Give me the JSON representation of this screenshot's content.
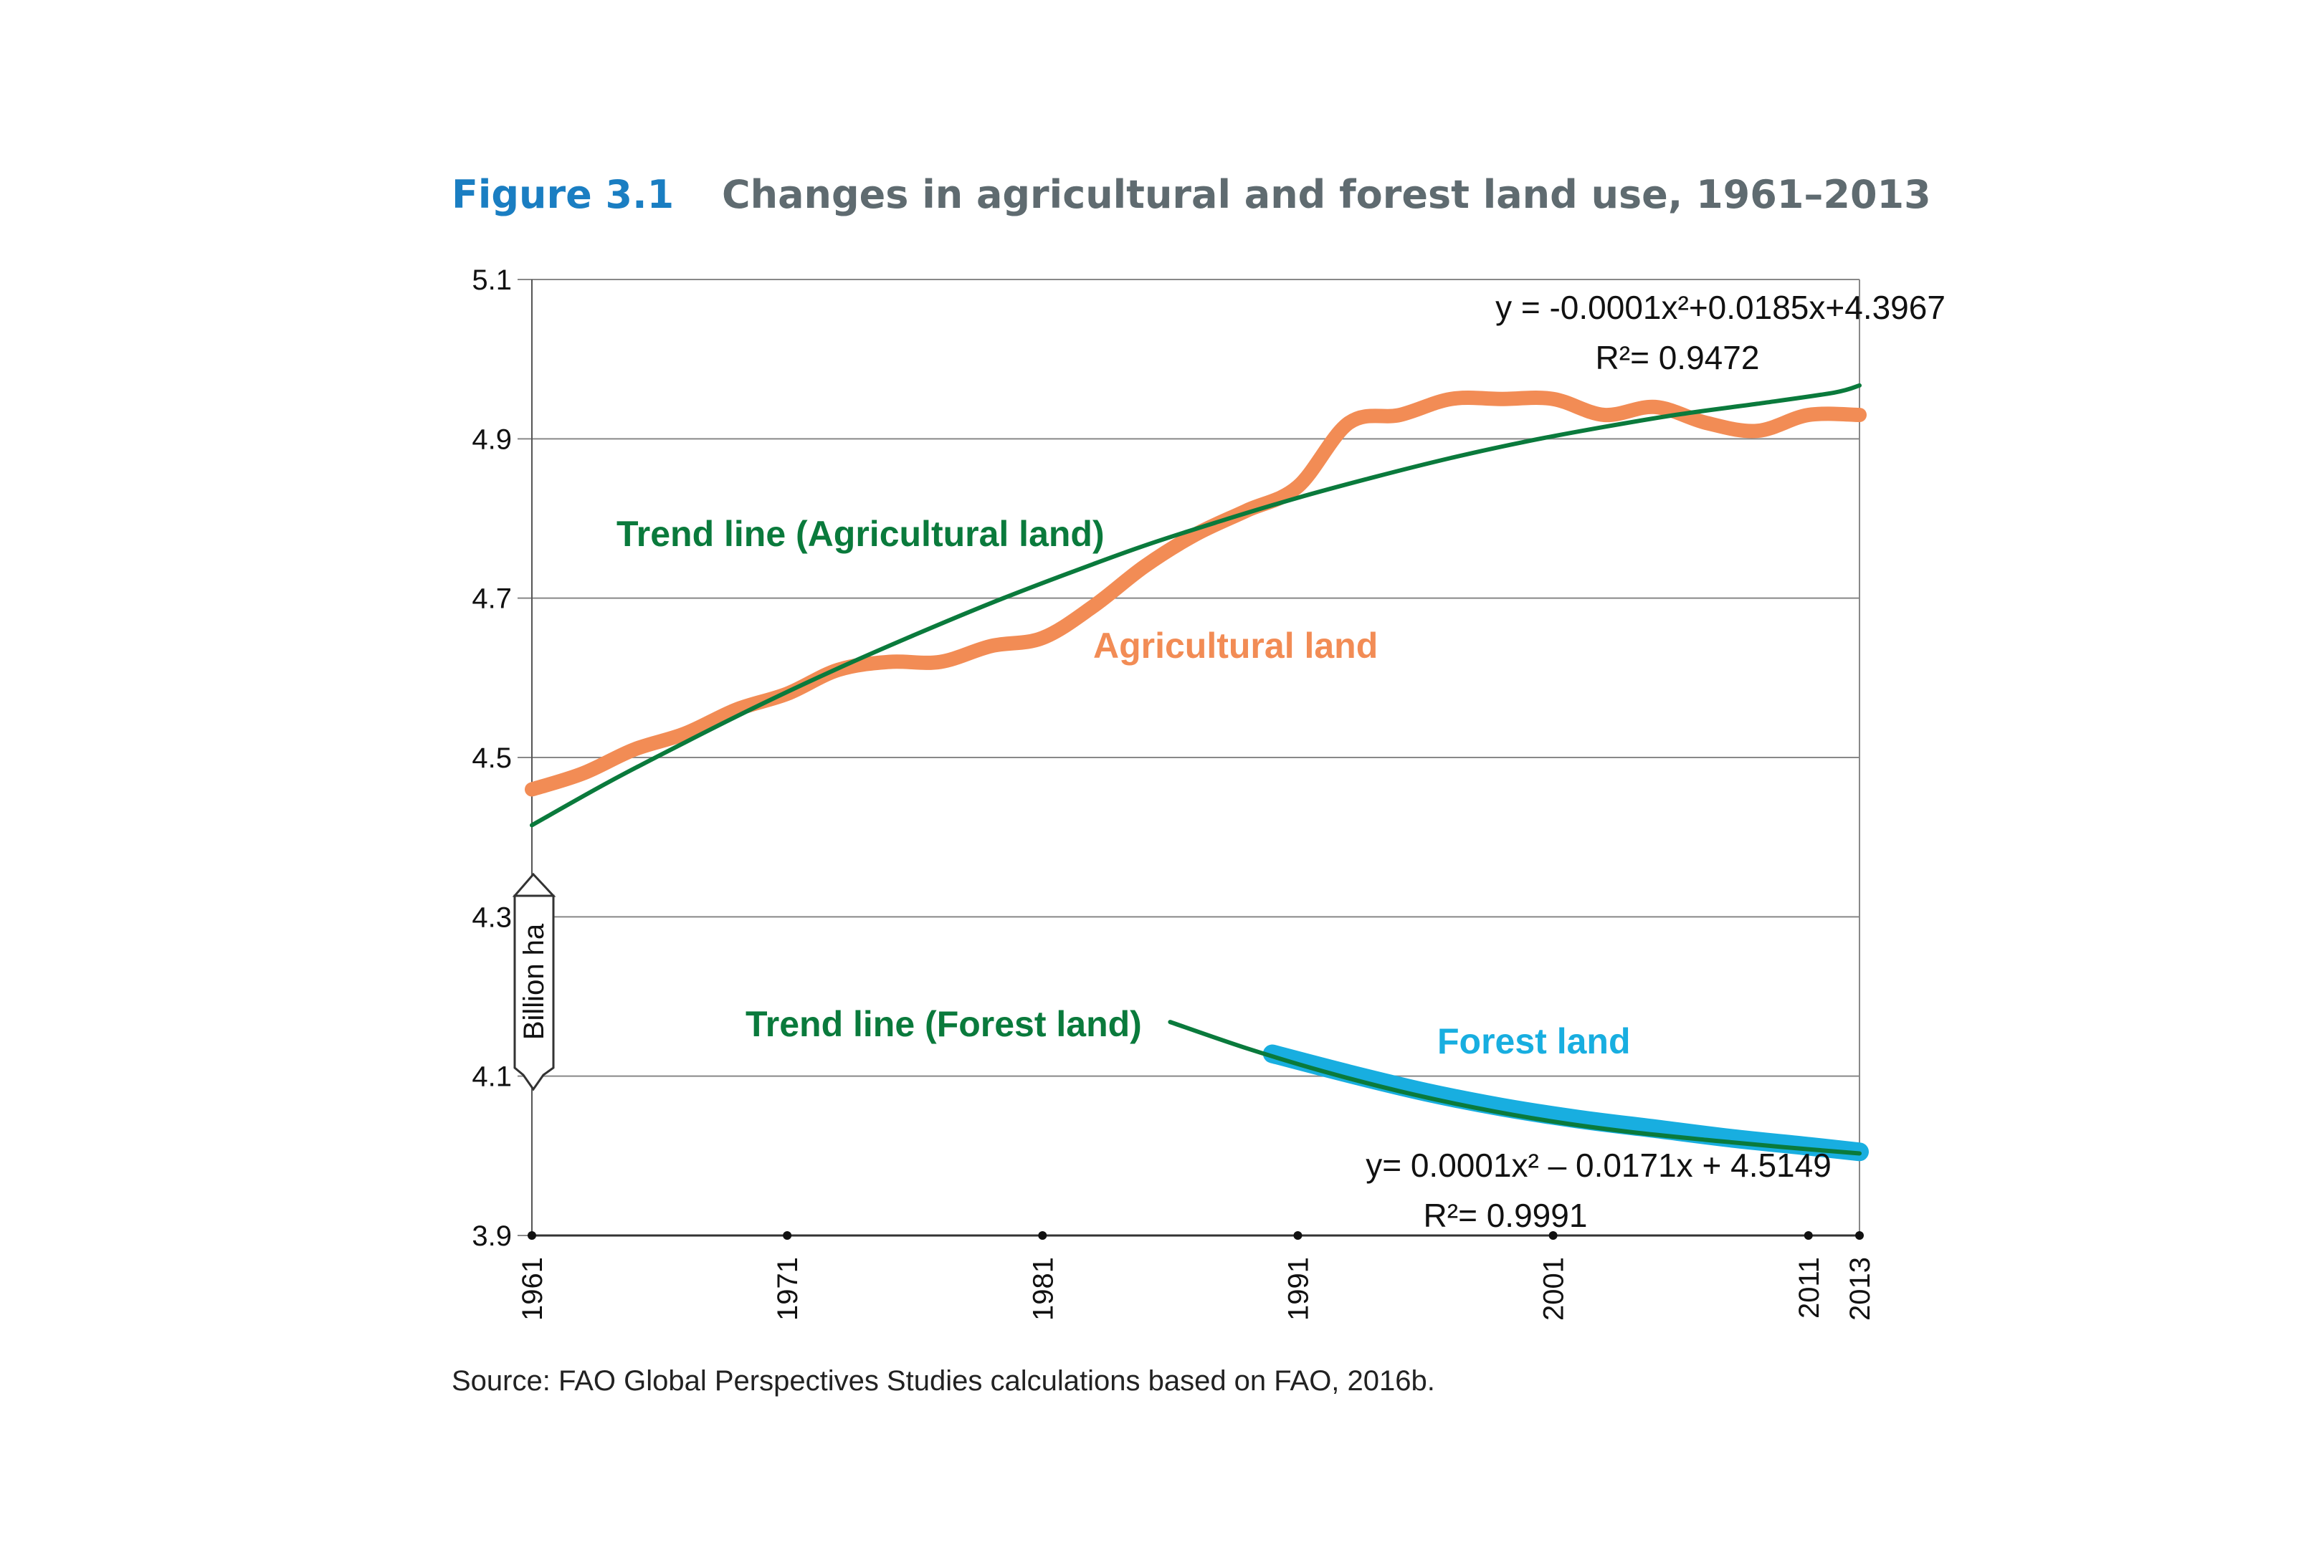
{
  "figure": {
    "label": "Figure 3.1",
    "title": "Changes in agricultural and forest land use, 1961–2013",
    "source": "Source: FAO Global Perspectives Studies calculations based on FAO, 2016b."
  },
  "colors": {
    "agricultural": "#f28c55",
    "forest": "#18aee0",
    "trend": "#0a7a3c",
    "grid": "#888888"
  },
  "chart_data": {
    "type": "line",
    "ylabel": "Billion ha",
    "ylim": [
      3.9,
      5.1
    ],
    "xlim": [
      1961,
      2013
    ],
    "yticks": [
      "5.1",
      "4.9",
      "4.7",
      "4.5",
      "4.3",
      "4.1",
      "3.9"
    ],
    "xticks": [
      "1961",
      "1971",
      "1981",
      "1991",
      "2001",
      "2011",
      "2013"
    ],
    "grid": true,
    "series": [
      {
        "name": "Agricultural land",
        "x": [
          1961,
          1963,
          1965,
          1967,
          1969,
          1971,
          1973,
          1975,
          1977,
          1979,
          1981,
          1983,
          1985,
          1987,
          1989,
          1991,
          1993,
          1995,
          1997,
          1999,
          2001,
          2003,
          2005,
          2007,
          2009,
          2011,
          2013
        ],
        "y": [
          4.46,
          4.48,
          4.51,
          4.53,
          4.56,
          4.58,
          4.61,
          4.62,
          4.62,
          4.64,
          4.65,
          4.69,
          4.74,
          4.78,
          4.81,
          4.84,
          4.92,
          4.93,
          4.95,
          4.95,
          4.95,
          4.93,
          4.94,
          4.92,
          4.91,
          4.93,
          4.93
        ]
      },
      {
        "name": "Forest land",
        "x": [
          1990,
          1993,
          1996,
          1999,
          2002,
          2005,
          2008,
          2011,
          2013
        ],
        "y": [
          4.128,
          4.103,
          4.08,
          4.061,
          4.046,
          4.034,
          4.022,
          4.012,
          4.005
        ]
      },
      {
        "name": "Trend line (Agricultural land)",
        "x": [
          1961,
          1964,
          1967,
          1970,
          1973,
          1976,
          1979,
          1982,
          1985,
          1988,
          1991,
          1994,
          1997,
          2000,
          2003,
          2006,
          2009,
          2012,
          2013
        ],
        "y": [
          4.415,
          4.469,
          4.519,
          4.567,
          4.612,
          4.654,
          4.694,
          4.731,
          4.766,
          4.797,
          4.826,
          4.852,
          4.876,
          4.897,
          4.915,
          4.931,
          4.944,
          4.958,
          4.967
        ]
      },
      {
        "name": "Trend line (Forest land)",
        "x": [
          1986,
          1989,
          1992,
          1995,
          1998,
          2001,
          2004,
          2007,
          2010,
          2013
        ],
        "y": [
          4.168,
          4.135,
          4.106,
          4.081,
          4.06,
          4.043,
          4.03,
          4.02,
          4.011,
          4.003
        ]
      }
    ],
    "annotations": {
      "agri_eq": "y = -0.0001x²+0.0185x+4.3967",
      "agri_r2": "R²= 0.9472",
      "forest_eq": "y= 0.0001x² – 0.0171x + 4.5149",
      "forest_r2": "R²= 0.9991",
      "agri_trend_label": "Trend line (Agricultural land)",
      "agri_label": "Agricultural land",
      "forest_trend_label": "Trend line (Forest land)",
      "forest_label": "Forest land"
    }
  }
}
